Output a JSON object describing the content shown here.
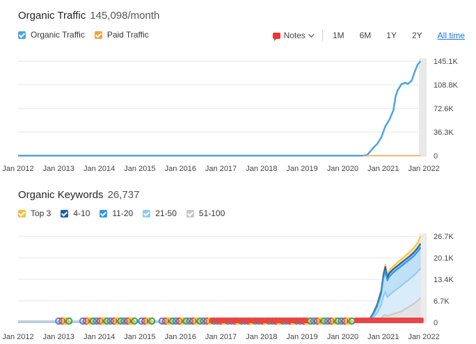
{
  "traffic": {
    "title": "Organic Traffic",
    "value": "145,098/month",
    "legend": [
      {
        "label": "Organic Traffic",
        "color": "#4aa3e8"
      },
      {
        "label": "Paid Traffic",
        "color": "#f5a042"
      }
    ]
  },
  "toolbar": {
    "notes_label": "Notes",
    "ranges": [
      "1M",
      "6M",
      "1Y",
      "2Y",
      "All time"
    ],
    "active_range": "All time"
  },
  "keywords": {
    "title": "Organic Keywords",
    "value": "26,737",
    "legend": [
      {
        "label": "Top 3",
        "color": "#f5c242"
      },
      {
        "label": "4-10",
        "color": "#1e5fa8"
      },
      {
        "label": "11-20",
        "color": "#2c9be8"
      },
      {
        "label": "21-50",
        "color": "#8fc9f2"
      },
      {
        "label": "51-100",
        "color": "#c8c8c8"
      }
    ]
  },
  "chart_data": [
    {
      "type": "line",
      "title": "Organic Traffic",
      "x_ticks": [
        "Jan 2012",
        "Jan 2013",
        "Jan 2014",
        "Jan 2015",
        "Jan 2016",
        "Jan 2017",
        "Jan 2018",
        "Jan 2019",
        "Jan 2020",
        "Jan 2021",
        "Jan 2022"
      ],
      "y_ticks": [
        "0",
        "36.3K",
        "72.6K",
        "108.8K",
        "145.1K"
      ],
      "ylim": [
        0,
        145100
      ],
      "xlim": [
        2012,
        2022.05
      ],
      "series": [
        {
          "name": "Organic Traffic",
          "color": "#4aa3e8",
          "points": [
            [
              2012,
              0
            ],
            [
              2020.5,
              0
            ],
            [
              2020.6,
              1000
            ],
            [
              2020.7,
              8000
            ],
            [
              2020.75,
              12000
            ],
            [
              2020.85,
              18000
            ],
            [
              2020.95,
              28000
            ],
            [
              2021.05,
              45000
            ],
            [
              2021.15,
              55000
            ],
            [
              2021.25,
              70000
            ],
            [
              2021.3,
              90000
            ],
            [
              2021.35,
              100000
            ],
            [
              2021.45,
              110000
            ],
            [
              2021.55,
              112000
            ],
            [
              2021.6,
              110000
            ],
            [
              2021.7,
              115000
            ],
            [
              2021.78,
              130000
            ],
            [
              2021.85,
              140000
            ],
            [
              2021.92,
              145098
            ]
          ]
        },
        {
          "name": "Paid Traffic",
          "color": "#f5a042",
          "points": [
            [
              2020.5,
              0
            ],
            [
              2021.92,
              0
            ]
          ]
        }
      ]
    },
    {
      "type": "area",
      "title": "Organic Keywords",
      "x_ticks": [
        "Jan 2012",
        "Jan 2013",
        "Jan 2014",
        "Jan 2015",
        "Jan 2016",
        "Jan 2017",
        "Jan 2018",
        "Jan 2019",
        "Jan 2020",
        "Jan 2021",
        "Jan 2022"
      ],
      "y_ticks": [
        "0",
        "6.7K",
        "13.4K",
        "20.1K",
        "26.7K"
      ],
      "ylim": [
        0,
        26737
      ],
      "xlim": [
        2012,
        2022.05
      ],
      "x": [
        2012,
        2020.55,
        2020.65,
        2020.75,
        2020.85,
        2020.95,
        2021.0,
        2021.05,
        2021.1,
        2021.15,
        2021.25,
        2021.35,
        2021.45,
        2021.55,
        2021.65,
        2021.75,
        2021.85,
        2021.92
      ],
      "series": [
        {
          "name": "51-100",
          "color": "#c8c8c8",
          "values": [
            0,
            0,
            200,
            500,
            900,
            1400,
            2000,
            2400,
            2000,
            2200,
            2700,
            3000,
            3500,
            4200,
            5000,
            5800,
            6800,
            7600
          ]
        },
        {
          "name": "21-50",
          "color": "#8fc9f2",
          "values": [
            0,
            0,
            500,
            1500,
            3000,
            5500,
            8000,
            9500,
            7800,
            8500,
            9600,
            10500,
            11500,
            12500,
            13500,
            14500,
            15800,
            16800
          ]
        },
        {
          "name": "11-20",
          "color": "#2c9be8",
          "values": [
            0,
            0,
            800,
            2500,
            5000,
            9000,
            13500,
            16000,
            13000,
            14200,
            15500,
            16500,
            17500,
            18500,
            19500,
            20500,
            22000,
            23200
          ]
        },
        {
          "name": "4-10",
          "color": "#1e5fa8",
          "values": [
            0,
            0,
            900,
            2800,
            5500,
            9800,
            14500,
            17200,
            14000,
            15300,
            16600,
            17600,
            18600,
            19600,
            20600,
            21700,
            23200,
            24500
          ]
        },
        {
          "name": "Top 3",
          "color": "#f5c242",
          "values": [
            0,
            0,
            1000,
            3000,
            5900,
            10300,
            15200,
            18000,
            14700,
            16100,
            17500,
            18600,
            19700,
            20800,
            21900,
            23100,
            24800,
            26737
          ]
        }
      ]
    }
  ]
}
